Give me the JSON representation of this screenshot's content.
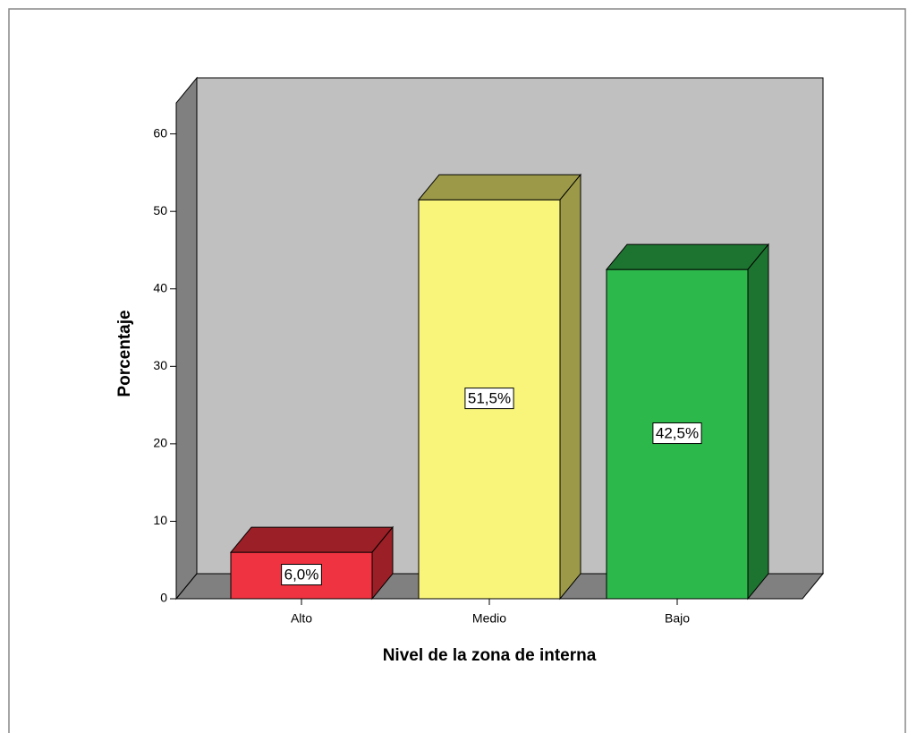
{
  "chart_data": {
    "type": "bar3d",
    "categories": [
      "Alto",
      "Medio",
      "Bajo"
    ],
    "values": [
      6.0,
      51.5,
      42.5
    ],
    "value_labels": [
      "6,0%",
      "51,5%",
      "42,5%"
    ],
    "colors": [
      "#ef3340",
      "#f8f57a",
      "#2db84b"
    ],
    "side_colors": [
      "#9b1f26",
      "#9c9a48",
      "#1d7430"
    ],
    "xlabel": "Nivel de la zona de interna",
    "ylabel": "Porcentaje",
    "ylim": [
      0,
      64
    ],
    "yticks": [
      0,
      10,
      20,
      30,
      40,
      50,
      60
    ]
  }
}
